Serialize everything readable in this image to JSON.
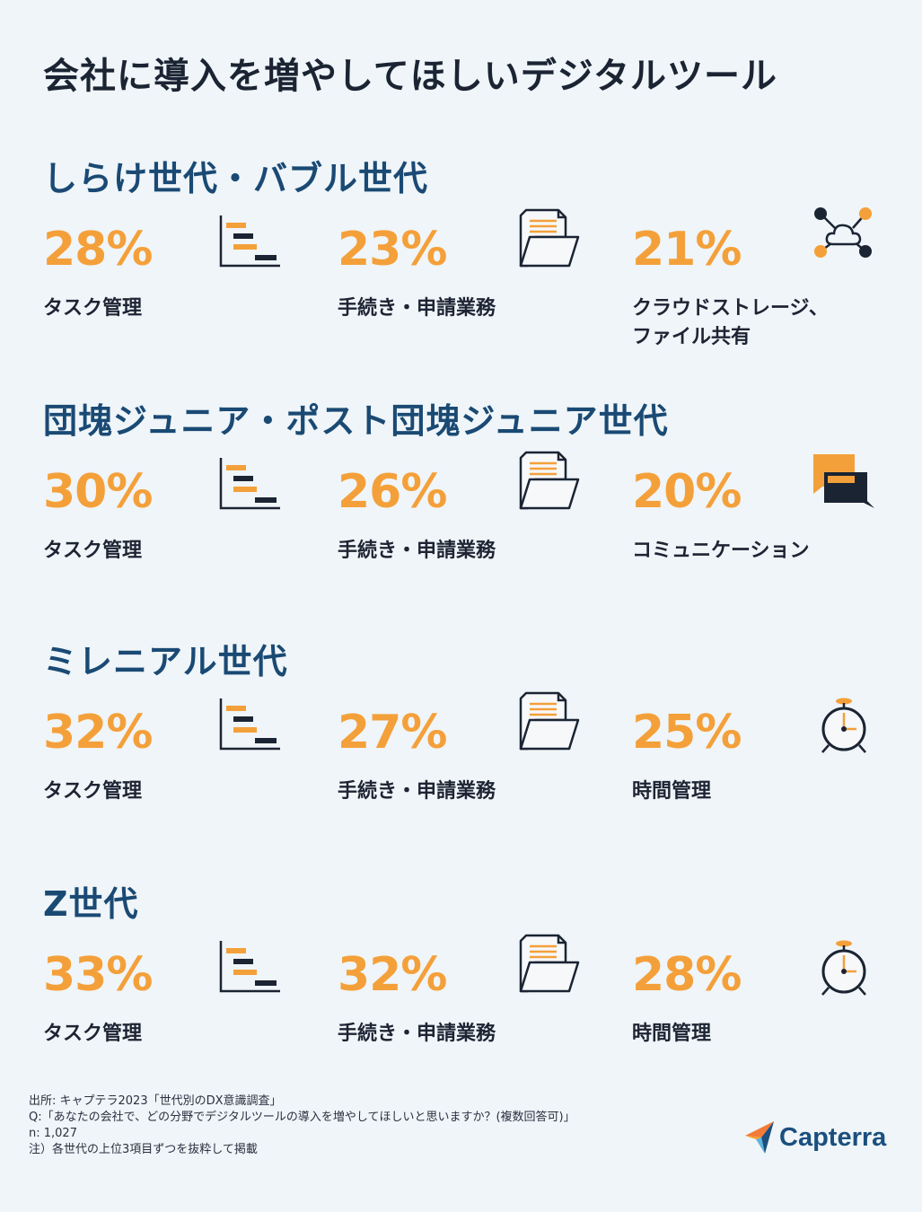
{
  "title": "会社に導入を増やしてほしいデジタルツール",
  "colors": {
    "accent": "#f4a03a",
    "heading": "#1a4a74",
    "dark": "#1b2433",
    "background": "#eff5f8"
  },
  "chart_data": {
    "type": "table",
    "title": "会社に導入を増やしてほしいデジタルツール",
    "unit": "%",
    "groups": [
      {
        "name": "しらけ世代・バブル世代",
        "items": [
          {
            "percent_text": "28%",
            "value": 28,
            "label": "タスク管理",
            "icon": "gantt-chart-icon"
          },
          {
            "percent_text": "23%",
            "value": 23,
            "label": "手続き・申請業務",
            "icon": "document-folder-icon"
          },
          {
            "percent_text": "21%",
            "value": 21,
            "label": "クラウドストレージ、ファイル共有",
            "label_lines": [
              "クラウドストレージ、",
              "ファイル共有"
            ],
            "icon": "cloud-share-icon"
          }
        ]
      },
      {
        "name": "団塊ジュニア・ポスト団塊ジュニア世代",
        "items": [
          {
            "percent_text": "30%",
            "value": 30,
            "label": "タスク管理",
            "icon": "gantt-chart-icon"
          },
          {
            "percent_text": "26%",
            "value": 26,
            "label": "手続き・申請業務",
            "icon": "document-folder-icon"
          },
          {
            "percent_text": "20%",
            "value": 20,
            "label": "コミュニケーション",
            "icon": "chat-bubbles-icon"
          }
        ]
      },
      {
        "name": "ミレニアル世代",
        "items": [
          {
            "percent_text": "32%",
            "value": 32,
            "label": "タスク管理",
            "icon": "gantt-chart-icon"
          },
          {
            "percent_text": "27%",
            "value": 27,
            "label": "手続き・申請業務",
            "icon": "document-folder-icon"
          },
          {
            "percent_text": "25%",
            "value": 25,
            "label": "時間管理",
            "icon": "alarm-clock-icon"
          }
        ]
      },
      {
        "name": "Z世代",
        "items": [
          {
            "percent_text": "33%",
            "value": 33,
            "label": "タスク管理",
            "icon": "gantt-chart-icon"
          },
          {
            "percent_text": "32%",
            "value": 32,
            "label": "手続き・申請業務",
            "icon": "document-folder-icon"
          },
          {
            "percent_text": "28%",
            "value": 28,
            "label": "時間管理",
            "icon": "alarm-clock-icon"
          }
        ]
      }
    ]
  },
  "footer": {
    "source": "出所: キャプテラ2023「世代別のDX意識調査」",
    "question": "Q:「あなたの会社で、どの分野でデジタルツールの導入を増やしてほしいと思いますか？(複数回答可)」",
    "sample": "n: 1,027",
    "note": "注）各世代の上位3項目ずつを抜粋して掲載"
  },
  "logo": {
    "text": "Capterra",
    "icon": "capterra-arrow-icon"
  }
}
